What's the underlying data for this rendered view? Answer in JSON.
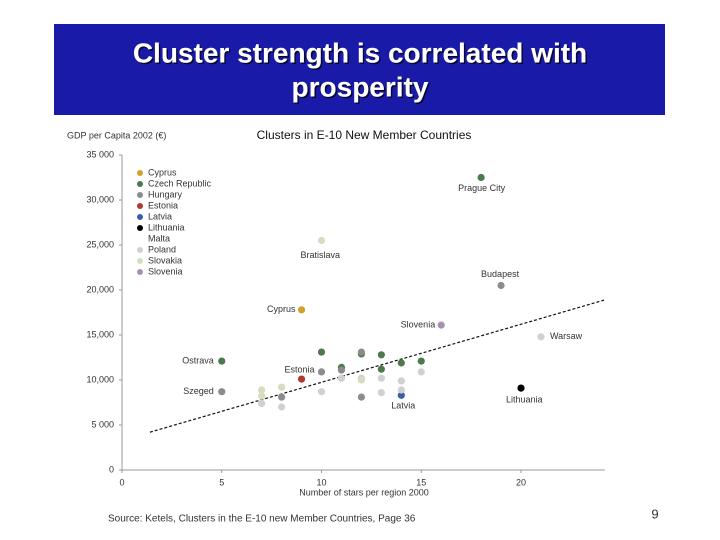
{
  "title_lines": [
    "Cluster strength is correlated with",
    "prosperity"
  ],
  "page_number": "9",
  "source": "Source: Ketels, Clusters in the E-10 new Member Countries, Page 36",
  "chart_data": {
    "type": "scatter",
    "title": "Clusters in E-10 New Member Countries",
    "y_label": "GDP per Capita 2002 (€)",
    "x_label": "Number of stars per region 2000",
    "xlim": [
      0,
      24.2
    ],
    "xticks": [
      0,
      5,
      10,
      15,
      20
    ],
    "ylim": [
      0,
      35000
    ],
    "yticks": [
      0,
      {
        "value": 5000,
        "label": "5 000"
      },
      {
        "value": 10000,
        "label": "10,000"
      },
      {
        "value": 15000,
        "label": "15,000"
      },
      {
        "value": 20000,
        "label": "20,000"
      },
      {
        "value": 25000,
        "label": "25,000"
      },
      {
        "value": 30000,
        "label": "30,000"
      },
      {
        "value": 35000,
        "label": "35 000"
      }
    ],
    "legend": "upper left",
    "trend_line": {
      "x": [
        1.4,
        24.2
      ],
      "values": [
        4200,
        18900
      ]
    },
    "series": [
      {
        "name": "Cyprus",
        "color": "#d4a02a",
        "x": [
          9
        ],
        "values": [
          17800
        ],
        "point_labels": [
          "Cyprus"
        ]
      },
      {
        "name": "Czech Republic",
        "color": "#4d7a4d",
        "x": [
          18,
          5,
          10,
          12,
          13,
          15,
          11,
          13,
          14
        ],
        "values": [
          32500,
          12100,
          13100,
          12900,
          12800,
          12100,
          11400,
          11200,
          11900
        ],
        "point_labels": [
          "Prague City",
          "Ostrava",
          null,
          null,
          null,
          null,
          null,
          null,
          null
        ]
      },
      {
        "name": "Hungary",
        "color": "#8c8c8c",
        "x": [
          19,
          5,
          12,
          11,
          8,
          12,
          10
        ],
        "values": [
          20500,
          8700,
          13100,
          11100,
          8100,
          8100,
          10900
        ],
        "point_labels": [
          "Budapest",
          "Szeged",
          null,
          null,
          null,
          null,
          null
        ]
      },
      {
        "name": "Estonia",
        "color": "#b03a2e",
        "x": [
          9
        ],
        "values": [
          10100
        ],
        "point_labels": [
          "Estonia"
        ]
      },
      {
        "name": "Latvia",
        "color": "#3a5fa8",
        "x": [
          14
        ],
        "values": [
          8300
        ],
        "point_labels": [
          "Latvia"
        ]
      },
      {
        "name": "Lithuania",
        "color": "#000000",
        "x": [
          20
        ],
        "values": [
          9100
        ],
        "point_labels": [
          "Lithuania"
        ]
      },
      {
        "name": "Malta",
        "x": [],
        "values": [],
        "point_labels": []
      },
      {
        "name": "Poland",
        "color": "#d0d0d0",
        "x": [
          21,
          11,
          13,
          14,
          15,
          12,
          7,
          8,
          13,
          14,
          10
        ],
        "values": [
          14800,
          10200,
          10200,
          9900,
          10900,
          10200,
          7400,
          7000,
          8600,
          8900,
          8700
        ],
        "point_labels": [
          "Warsaw",
          null,
          null,
          null,
          null,
          null,
          null,
          null,
          null,
          null,
          null
        ]
      },
      {
        "name": "Slovakia",
        "color": "#d6dcc0",
        "x": [
          10,
          7,
          8,
          12,
          7
        ],
        "values": [
          25500,
          8900,
          9200,
          10000,
          8200
        ],
        "point_labels": [
          "Bratislava",
          null,
          null,
          null,
          null
        ]
      },
      {
        "name": "Slovenia",
        "color": "#a890b0",
        "x": [
          16
        ],
        "values": [
          16100
        ],
        "point_labels": [
          "Slovenia"
        ]
      }
    ]
  }
}
